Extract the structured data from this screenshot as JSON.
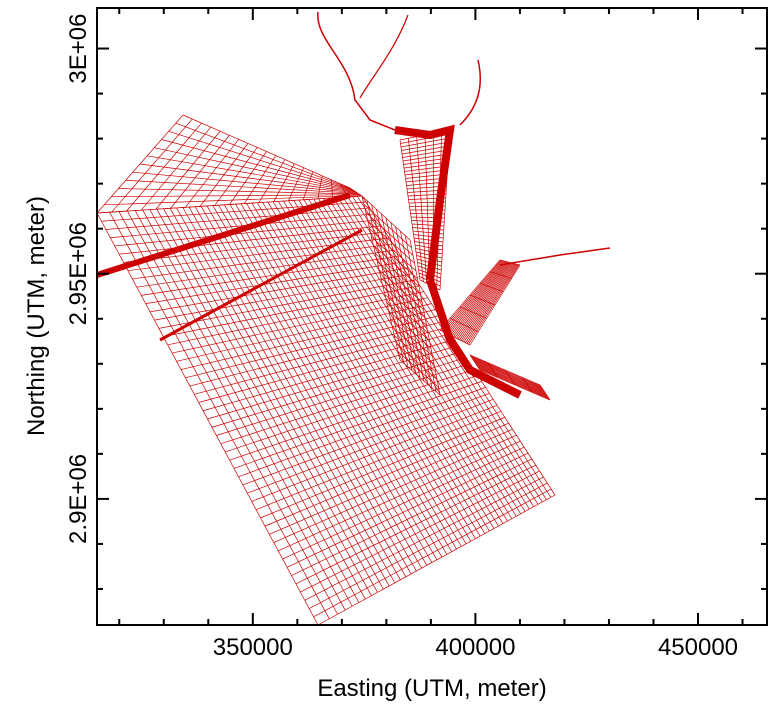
{
  "chart_data": {
    "type": "mesh",
    "xlabel": "Easting (UTM, meter)",
    "ylabel": "Northing (UTM, meter)",
    "color": "#cc0000",
    "xlim": [
      315000,
      465500
    ],
    "ylim": [
      2872000,
      3009000
    ],
    "xticks": [
      350000,
      400000,
      450000
    ],
    "yticks": [
      {
        "value": 2900000,
        "label": "2.9E+06"
      },
      {
        "value": 2950000,
        "label": "2.95E+06"
      },
      {
        "value": 3000000,
        "label": "3E+06"
      }
    ],
    "xminorticks": [
      320000,
      330000,
      340000,
      360000,
      370000,
      380000,
      390000,
      410000,
      420000,
      430000,
      440000,
      460000
    ],
    "yminorticks": [
      2880000,
      2890000,
      2910000,
      2920000,
      2930000,
      2940000,
      2960000,
      2970000,
      2980000,
      2990000
    ]
  }
}
